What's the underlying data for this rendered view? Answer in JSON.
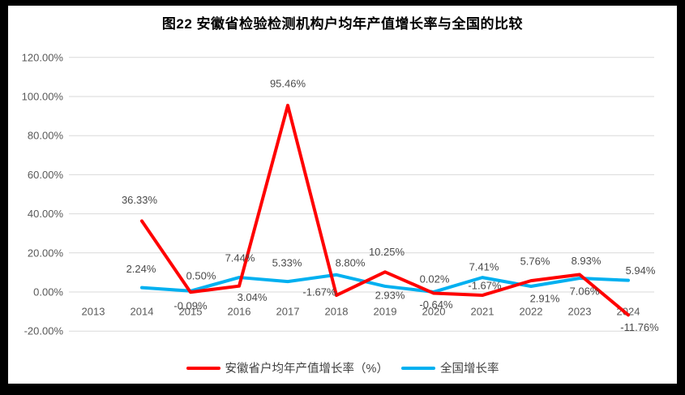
{
  "chart_data": {
    "type": "line",
    "title": "图22 安徽省检验检测机构户均年产值增长率与全国的比较",
    "categories": [
      "2013",
      "2014",
      "2015",
      "2016",
      "2017",
      "2018",
      "2019",
      "2020",
      "2021",
      "2022",
      "2023",
      "2024"
    ],
    "series": [
      {
        "key": "anhui",
        "name": "安徽省户均年产值增长率（%）",
        "color": "#FF0000",
        "values": [
          null,
          36.33,
          -0.09,
          3.04,
          95.46,
          -1.67,
          10.25,
          -0.64,
          -1.67,
          5.76,
          8.93,
          -11.76
        ],
        "labels": [
          null,
          "36.33%",
          "-0.09%",
          "3.04%",
          "95.46%",
          "-1.67%",
          "10.25%",
          "-0.64%",
          "-1.67%",
          "5.76%",
          "8.93%",
          "-11.76%"
        ],
        "label_offsets": [
          null,
          [
            -3,
            -26
          ],
          [
            0,
            17
          ],
          [
            16,
            14
          ],
          [
            0,
            -27
          ],
          [
            -21,
            -4
          ],
          [
            2,
            -25
          ],
          [
            3,
            14
          ],
          [
            3,
            -12
          ],
          [
            5,
            -24
          ],
          [
            8,
            -17
          ],
          [
            14,
            15
          ]
        ]
      },
      {
        "key": "national",
        "name": "全国增长率",
        "color": "#00B0F0",
        "values": [
          null,
          2.24,
          0.5,
          7.44,
          5.33,
          8.8,
          2.93,
          0.02,
          7.41,
          2.91,
          7.06,
          5.94
        ],
        "labels": [
          null,
          "2.24%",
          "0.50%",
          "7.44%",
          "5.33%",
          "8.80%",
          "2.93%",
          "0.02%",
          "7.41%",
          "2.91%",
          "7.06%",
          "5.94%"
        ],
        "label_offsets": [
          null,
          [
            -1,
            -23
          ],
          [
            13,
            -19
          ],
          [
            1,
            -24
          ],
          [
            -1,
            -23
          ],
          [
            17,
            -15
          ],
          [
            6,
            11
          ],
          [
            1,
            -16
          ],
          [
            2,
            -13
          ],
          [
            17,
            15
          ],
          [
            6,
            16
          ],
          [
            15,
            -12
          ]
        ]
      }
    ],
    "ylim": [
      -20,
      120
    ],
    "ytick_step": 20,
    "ytick_format": "percent-2dp",
    "grid": true,
    "legend_position": "bottom",
    "colors": {
      "gridline": "#D9D9D9",
      "axis_text": "#595959",
      "data_label_text": "#4A4A4A",
      "frame": "#000000",
      "canvas": "#FFFFFF"
    }
  }
}
